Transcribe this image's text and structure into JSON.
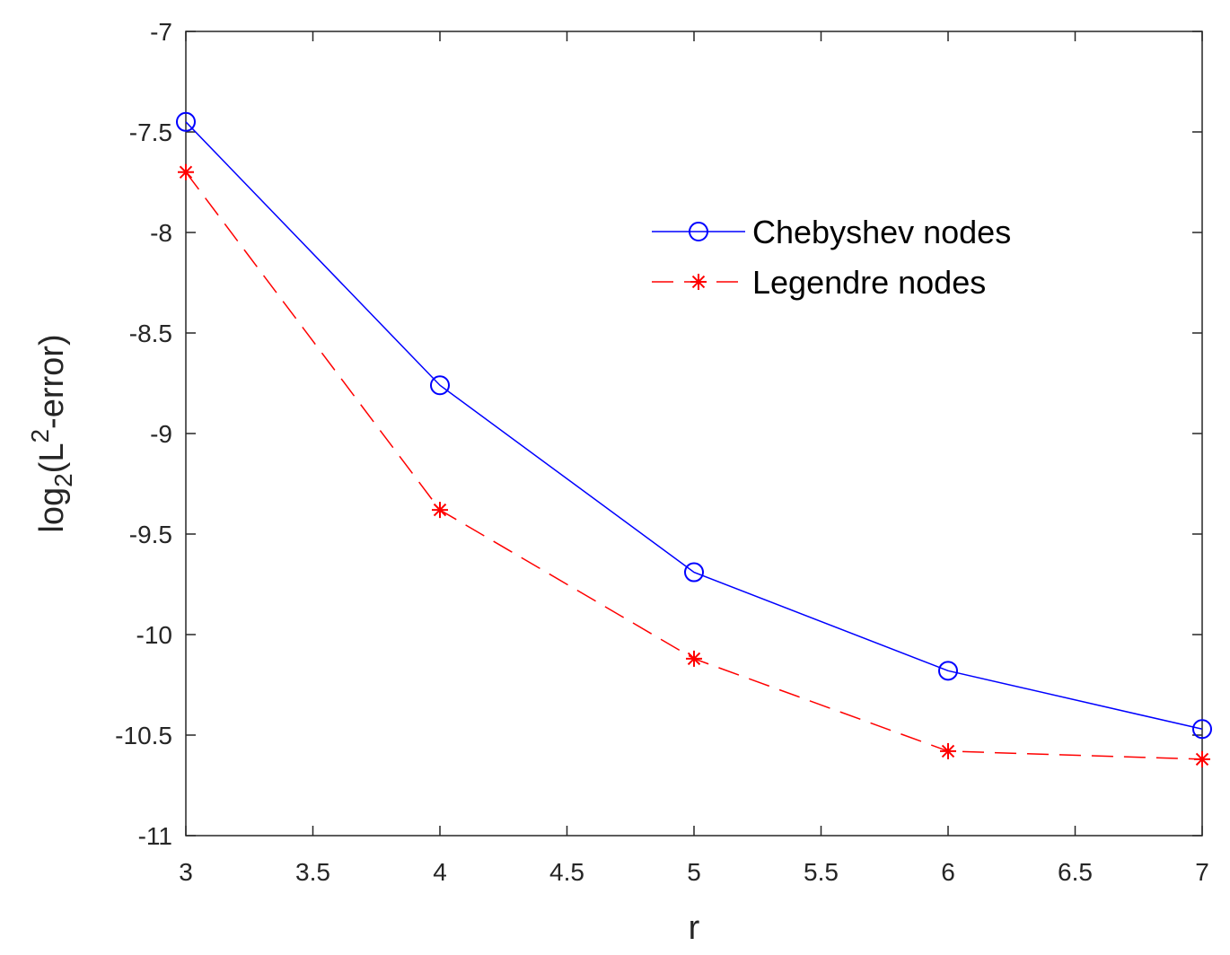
{
  "chart_data": {
    "type": "line",
    "title": "",
    "xlabel": "r",
    "ylabel": {
      "prefix": "log",
      "subscript": "2",
      "open": "(L",
      "superscript": "2",
      "suffix": "-error)"
    },
    "xlim": [
      3,
      7
    ],
    "ylim": [
      -11,
      -7
    ],
    "x_ticks": [
      3,
      3.5,
      4,
      4.5,
      5,
      5.5,
      6,
      6.5,
      7
    ],
    "x_tick_labels": [
      "3",
      "3.5",
      "4",
      "4.5",
      "5",
      "5.5",
      "6",
      "6.5",
      "7"
    ],
    "y_ticks": [
      -7,
      -7.5,
      -8,
      -8.5,
      -9,
      -9.5,
      -10,
      -10.5,
      -11
    ],
    "y_tick_labels": [
      "-7",
      "-7.5",
      "-8",
      "-8.5",
      "-9",
      "-9.5",
      "-10",
      "-10.5",
      "-11"
    ],
    "x": [
      3,
      4,
      5,
      6,
      7
    ],
    "series": [
      {
        "name": "Chebyshev nodes",
        "color": "#0000ff",
        "line_style": "solid",
        "marker": "circle",
        "values": [
          -7.45,
          -8.76,
          -9.69,
          -10.18,
          -10.47
        ]
      },
      {
        "name": "Legendre nodes",
        "color": "#ff0000",
        "line_style": "dashed",
        "marker": "asterisk",
        "values": [
          -7.7,
          -9.38,
          -10.12,
          -10.58,
          -10.62
        ]
      }
    ],
    "grid": false,
    "legend_position": "upper-right"
  }
}
